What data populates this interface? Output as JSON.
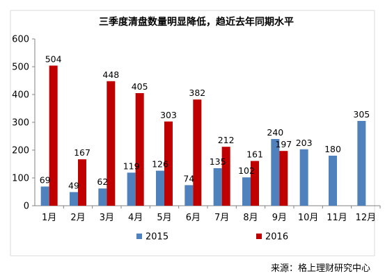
{
  "chart_data": {
    "type": "bar",
    "title": "三季度清盘数量明显降低，趋近去年同期水平",
    "categories": [
      "1月",
      "2月",
      "3月",
      "4月",
      "5月",
      "6月",
      "7月",
      "8月",
      "9月",
      "10月",
      "11月",
      "12月"
    ],
    "series": [
      {
        "name": "2015",
        "color": "#4f81bd",
        "values": [
          69,
          49,
          62,
          119,
          126,
          74,
          135,
          102,
          240,
          203,
          180,
          305
        ]
      },
      {
        "name": "2016",
        "color": "#c00000",
        "values": [
          504,
          167,
          448,
          405,
          303,
          382,
          212,
          161,
          197,
          null,
          null,
          null
        ]
      }
    ],
    "ylim": [
      0,
      600
    ],
    "yticks": [
      0,
      100,
      200,
      300,
      400,
      500,
      600
    ],
    "grid": false,
    "legend_position": "bottom",
    "xlabel": "",
    "ylabel": ""
  },
  "source": "来源：格上理财研究中心"
}
